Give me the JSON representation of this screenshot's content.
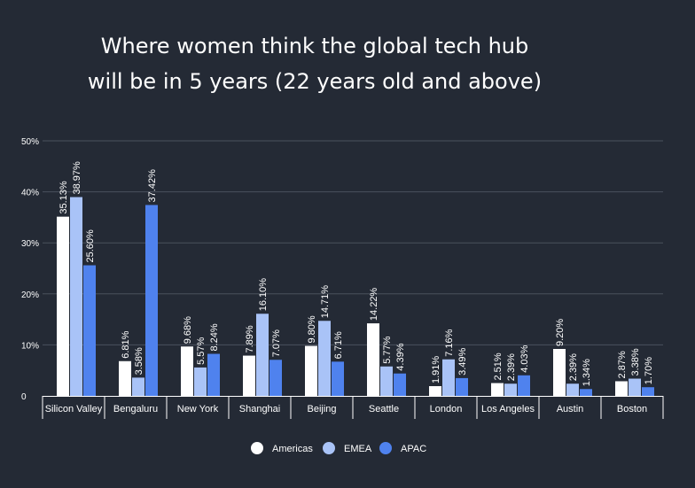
{
  "chart_data": {
    "type": "bar",
    "title_lines": [
      "Where women think the global tech hub",
      "will be in 5 years (22 years old and above)"
    ],
    "categories": [
      "Silicon Valley",
      "Bengaluru",
      "New York",
      "Shanghai",
      "Beijing",
      "Seattle",
      "London",
      "Los Angeles",
      "Austin",
      "Boston"
    ],
    "series": [
      {
        "name": "Americas",
        "color": "#ffffff",
        "values": [
          35.13,
          6.81,
          9.68,
          7.89,
          9.8,
          14.22,
          1.91,
          2.51,
          9.2,
          2.87
        ],
        "labels": [
          "35.13%",
          "6.81%",
          "9.68%",
          "7.89%",
          "9.80%",
          "14.22%",
          "1.91%",
          "2.51%",
          "9.20%",
          "2.87%"
        ]
      },
      {
        "name": "EMEA",
        "color": "#a9c3f7",
        "values": [
          38.97,
          3.58,
          5.57,
          16.1,
          14.71,
          5.77,
          7.16,
          2.39,
          2.39,
          3.38
        ],
        "labels": [
          "38.97%",
          "3.58%",
          "5.57%",
          "16.10%",
          "14.71%",
          "5.77%",
          "7.16%",
          "2.39%",
          "2.39%",
          "3.38%"
        ]
      },
      {
        "name": "APAC",
        "color": "#4f82ee",
        "values": [
          25.6,
          37.42,
          8.24,
          7.07,
          6.71,
          4.39,
          3.49,
          4.03,
          1.34,
          1.7
        ],
        "labels": [
          "25.60%",
          "37.42%",
          "8.24%",
          "7.07%",
          "6.71%",
          "4.39%",
          "3.49%",
          "4.03%",
          "1.34%",
          "1.70%"
        ]
      }
    ],
    "ylim": [
      0,
      50
    ],
    "yticks": [
      0,
      10,
      20,
      30,
      40,
      50
    ],
    "ytick_labels": [
      "0",
      "10%",
      "20%",
      "30%",
      "40%",
      "50%"
    ],
    "grid": true,
    "legend": "bottom-center",
    "background": "#242a35"
  }
}
